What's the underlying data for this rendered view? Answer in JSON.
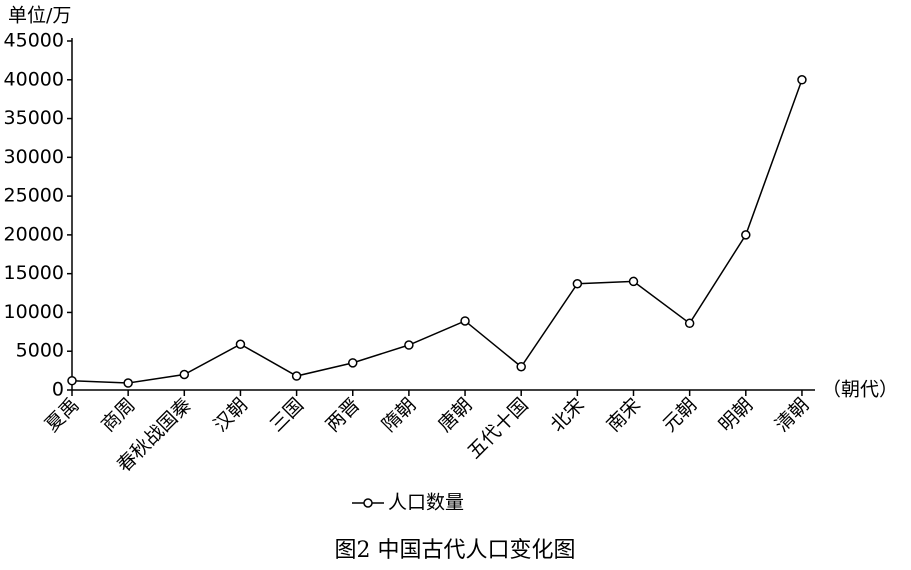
{
  "chart_data": {
    "type": "line",
    "title": "图2  中国古代人口变化图",
    "y_label": "单位/万",
    "x_label": "（朝代）",
    "categories": [
      "夏禹",
      "商周",
      "春秋战国秦",
      "汉朝",
      "三国",
      "两晋",
      "隋朝",
      "唐朝",
      "五代十国",
      "北宋",
      "南宋",
      "元朝",
      "明朝",
      "清朝"
    ],
    "series": [
      {
        "name": "人口数量",
        "color": "#000000",
        "values": [
          1200,
          900,
          2000,
          5900,
          1800,
          3500,
          5800,
          8900,
          3000,
          13700,
          14000,
          8600,
          20000,
          40000
        ]
      }
    ],
    "ylim": [
      0,
      45000
    ],
    "yticks": [
      0,
      5000,
      10000,
      15000,
      20000,
      25000,
      30000,
      35000,
      40000,
      45000
    ],
    "grid": false,
    "legend": "bottom"
  }
}
